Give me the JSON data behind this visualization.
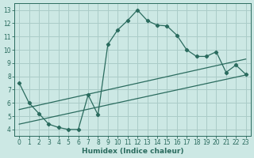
{
  "xlabel": "Humidex (Indice chaleur)",
  "bg_color": "#cce8e4",
  "grid_color": "#aaccc8",
  "line_color": "#2a6b5e",
  "xlim": [
    -0.5,
    23.5
  ],
  "ylim": [
    3.5,
    13.5
  ],
  "xticks": [
    0,
    1,
    2,
    3,
    4,
    5,
    6,
    7,
    8,
    9,
    10,
    11,
    12,
    13,
    14,
    15,
    16,
    17,
    18,
    19,
    20,
    21,
    22,
    23
  ],
  "yticks": [
    4,
    5,
    6,
    7,
    8,
    9,
    10,
    11,
    12,
    13
  ],
  "series1_x": [
    0,
    1,
    2,
    3,
    4,
    5,
    6,
    7,
    8,
    9,
    10,
    11,
    12,
    13,
    14,
    15,
    16,
    17,
    18,
    19,
    20,
    21,
    22,
    23
  ],
  "series1_y": [
    7.5,
    6.0,
    5.2,
    4.4,
    4.15,
    4.0,
    4.0,
    6.6,
    5.1,
    10.4,
    11.5,
    12.2,
    13.0,
    12.2,
    11.85,
    11.8,
    11.1,
    10.0,
    9.5,
    9.5,
    9.85,
    8.3,
    8.85,
    8.15
  ],
  "series2_x": [
    0,
    23
  ],
  "series2_y": [
    5.5,
    9.3
  ],
  "series3_x": [
    0,
    23
  ],
  "series3_y": [
    4.4,
    8.1
  ],
  "marker_style": "D",
  "marker_size": 2.2,
  "line_width": 0.9,
  "tick_fontsize": 5.5,
  "xlabel_fontsize": 6.5
}
